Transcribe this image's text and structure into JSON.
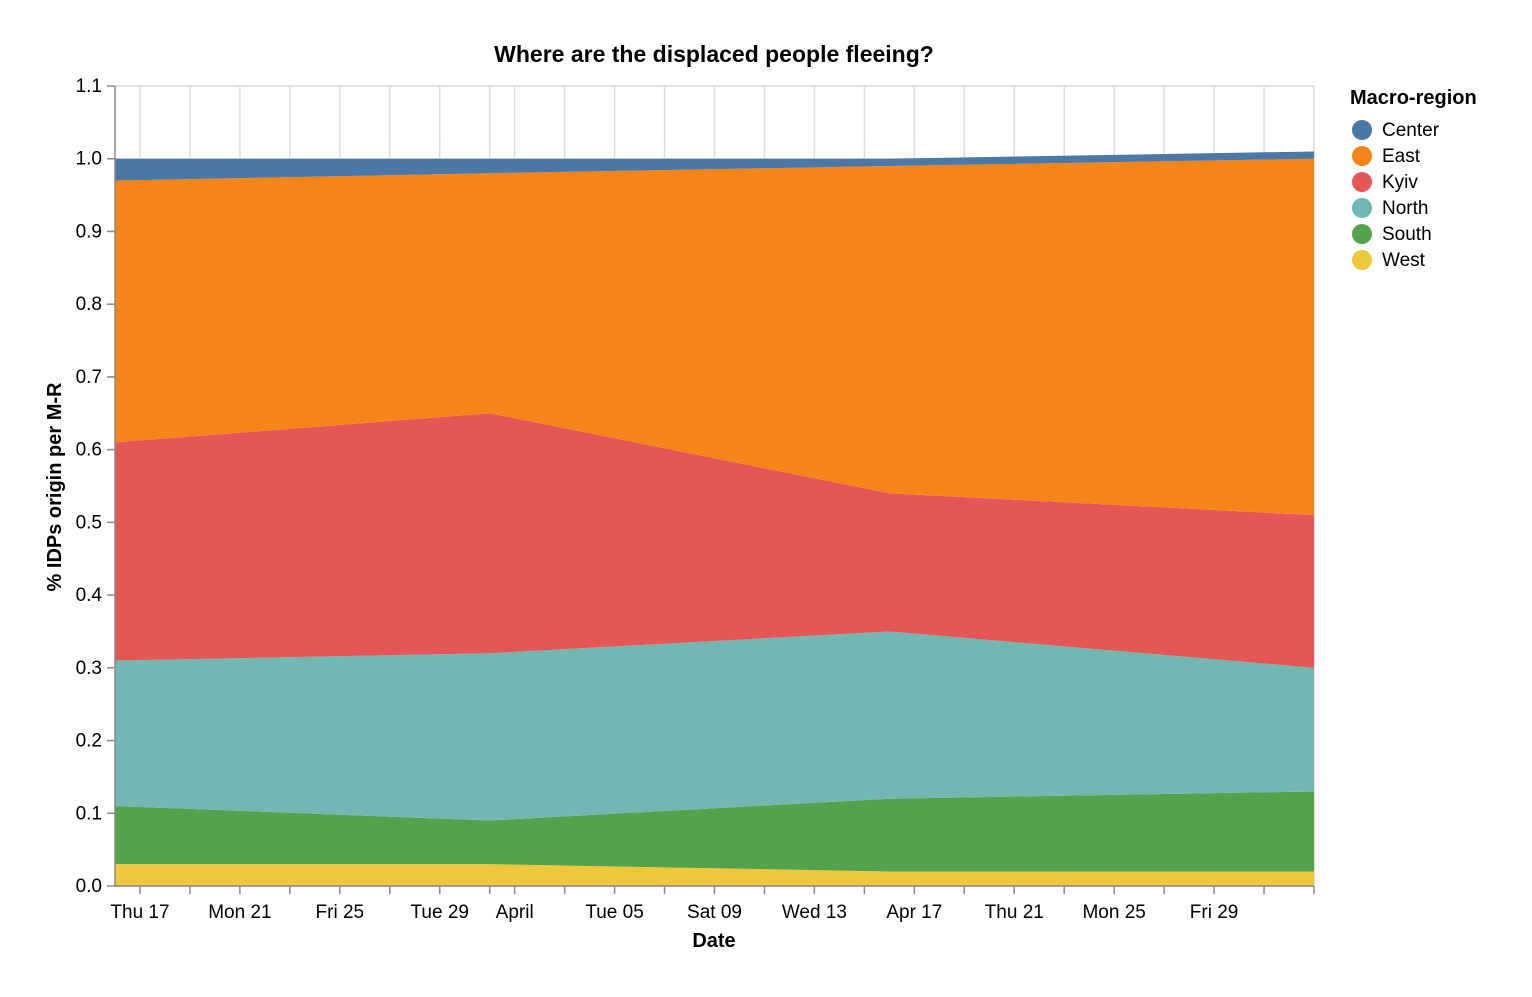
{
  "chart_data": {
    "type": "area",
    "stacked": true,
    "title": "Where are the displaced people fleeing?",
    "xlabel": "Date",
    "ylabel": "% IDPs origin per M-R",
    "ylim": [
      0,
      1.1
    ],
    "y_ticks": [
      "0.0",
      "0.1",
      "0.2",
      "0.3",
      "0.4",
      "0.5",
      "0.6",
      "0.7",
      "0.8",
      "0.9",
      "1.0",
      "1.1"
    ],
    "xlim": [
      "2022-03-16",
      "2022-05-03"
    ],
    "x_ticks": [
      {
        "date": "2022-03-17",
        "label": "Thu 17"
      },
      {
        "date": "2022-03-21",
        "label": "Mon 21"
      },
      {
        "date": "2022-03-25",
        "label": "Fri 25"
      },
      {
        "date": "2022-03-29",
        "label": "Tue 29"
      },
      {
        "date": "2022-04-01",
        "label": "April"
      },
      {
        "date": "2022-04-05",
        "label": "Tue 05"
      },
      {
        "date": "2022-04-09",
        "label": "Sat 09"
      },
      {
        "date": "2022-04-13",
        "label": "Wed 13"
      },
      {
        "date": "2022-04-17",
        "label": "Apr 17"
      },
      {
        "date": "2022-04-21",
        "label": "Thu 21"
      },
      {
        "date": "2022-04-25",
        "label": "Mon 25"
      },
      {
        "date": "2022-04-29",
        "label": "Fri 29"
      }
    ],
    "x_grid_dates": [
      "2022-03-17",
      "2022-03-19",
      "2022-03-21",
      "2022-03-23",
      "2022-03-25",
      "2022-03-27",
      "2022-03-29",
      "2022-03-31",
      "2022-04-01",
      "2022-04-03",
      "2022-04-05",
      "2022-04-07",
      "2022-04-09",
      "2022-04-11",
      "2022-04-13",
      "2022-04-15",
      "2022-04-17",
      "2022-04-19",
      "2022-04-21",
      "2022-04-23",
      "2022-04-25",
      "2022-04-27",
      "2022-04-29",
      "2022-05-01",
      "2022-05-03"
    ],
    "grid": true,
    "x": [
      "2022-03-16",
      "2022-03-31",
      "2022-04-16",
      "2022-05-03"
    ],
    "series": [
      {
        "name": "West",
        "color": "#EEC73A",
        "values": [
          0.03,
          0.03,
          0.02,
          0.02
        ]
      },
      {
        "name": "South",
        "color": "#54A24B",
        "values": [
          0.08,
          0.06,
          0.1,
          0.11
        ]
      },
      {
        "name": "North",
        "color": "#72B7B2",
        "values": [
          0.2,
          0.23,
          0.23,
          0.17
        ]
      },
      {
        "name": "Kyiv",
        "color": "#E45756",
        "values": [
          0.3,
          0.33,
          0.19,
          0.21
        ]
      },
      {
        "name": "East",
        "color": "#F58518",
        "values": [
          0.36,
          0.33,
          0.45,
          0.49
        ]
      },
      {
        "name": "Center",
        "color": "#4C78A8",
        "values": [
          0.03,
          0.02,
          0.01,
          0.01
        ]
      }
    ],
    "legend": {
      "title": "Macro-region",
      "position": "right",
      "items": [
        {
          "name": "Center",
          "color": "#4C78A8"
        },
        {
          "name": "East",
          "color": "#F58518"
        },
        {
          "name": "Kyiv",
          "color": "#E45756"
        },
        {
          "name": "North",
          "color": "#72B7B2"
        },
        {
          "name": "South",
          "color": "#54A24B"
        },
        {
          "name": "West",
          "color": "#EEC73A"
        }
      ]
    }
  }
}
